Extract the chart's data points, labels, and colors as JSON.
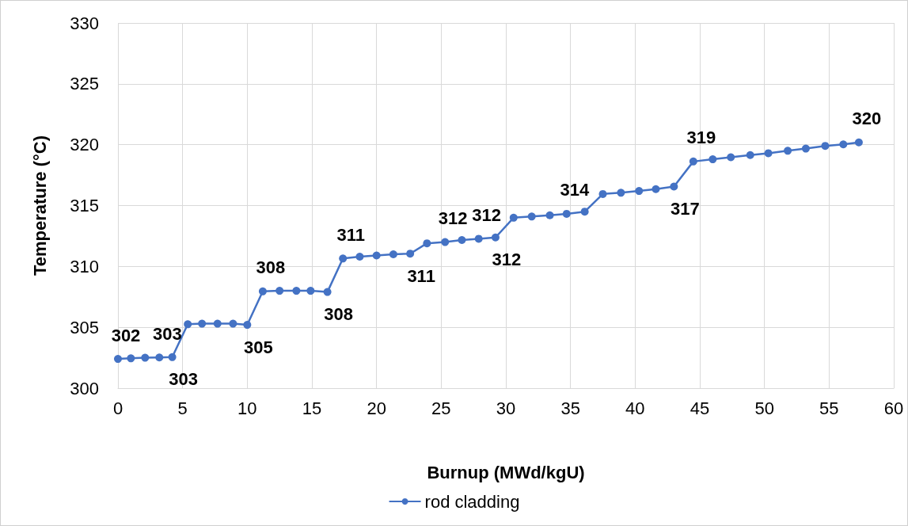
{
  "chart_data": {
    "type": "line",
    "xlabel": "Burnup (MWd/kgU)",
    "ylabel": "Temperature (°C)",
    "x": [
      0,
      1.0,
      2.1,
      3.2,
      4.2,
      5.4,
      6.5,
      7.7,
      8.9,
      10.0,
      11.2,
      12.5,
      13.8,
      14.9,
      16.2,
      17.4,
      18.7,
      20.0,
      21.3,
      22.6,
      23.9,
      25.3,
      26.6,
      27.9,
      29.2,
      30.6,
      32.0,
      33.4,
      34.7,
      36.1,
      37.5,
      38.9,
      40.3,
      41.6,
      43.0,
      44.5,
      46.0,
      47.4,
      48.9,
      50.3,
      51.8,
      53.2,
      54.7,
      56.1,
      57.3
    ],
    "series": [
      {
        "name": "rod cladding",
        "color": "#4472c4",
        "values": [
          302.4,
          302.45,
          302.5,
          302.52,
          302.55,
          305.25,
          305.3,
          305.3,
          305.3,
          305.2,
          307.95,
          308.0,
          308.0,
          308.0,
          307.9,
          310.65,
          310.8,
          310.9,
          311.0,
          311.05,
          311.9,
          312.0,
          312.17,
          312.27,
          312.38,
          314.0,
          314.1,
          314.2,
          314.32,
          314.5,
          315.95,
          316.05,
          316.2,
          316.35,
          316.56,
          318.62,
          318.8,
          318.97,
          319.15,
          319.3,
          319.5,
          319.68,
          319.9,
          320.03,
          320.19
        ],
        "value_labels": [
          "302",
          null,
          null,
          "303",
          "303",
          null,
          null,
          null,
          null,
          "305",
          "308",
          null,
          null,
          null,
          "308",
          "311",
          null,
          null,
          null,
          "311",
          null,
          "312",
          null,
          "312",
          "312",
          null,
          null,
          null,
          "314",
          null,
          null,
          null,
          null,
          null,
          "317",
          "319",
          null,
          null,
          null,
          null,
          null,
          null,
          null,
          null,
          "320"
        ]
      }
    ],
    "xlim": [
      0,
      60
    ],
    "xticks": [
      0,
      5,
      10,
      15,
      20,
      25,
      30,
      35,
      40,
      45,
      50,
      55,
      60
    ],
    "ylim": [
      300,
      330
    ],
    "yticks": [
      300,
      305,
      310,
      315,
      320,
      325,
      330
    ],
    "grid": true,
    "legend": "bottom",
    "marker": "circle",
    "line_style": "solid"
  }
}
